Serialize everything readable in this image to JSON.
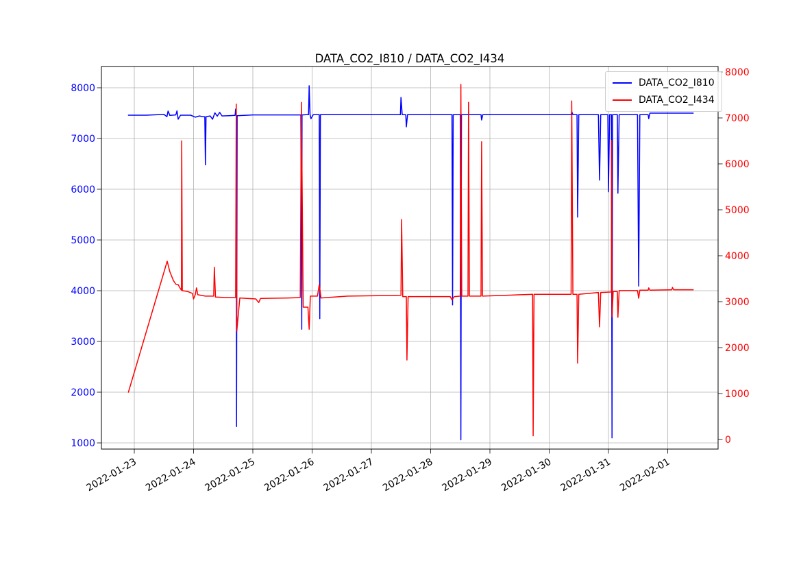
{
  "title": "DATA_CO2_I810 / DATA_CO2_I434",
  "legend": {
    "items": [
      {
        "label": "DATA_CO2_I810",
        "color": "#0000ff"
      },
      {
        "label": "DATA_CO2_I434",
        "color": "#ff0000"
      }
    ]
  },
  "chart_data": {
    "type": "line",
    "title": "DATA_CO2_I810 / DATA_CO2_I434",
    "xlabel": "",
    "ylabel_left": "",
    "ylabel_right": "",
    "grid": true,
    "grid_color": "#b0b0b0",
    "legend_position": "upper right",
    "x_axis": {
      "tick_labels": [
        "2022-01-23",
        "2022-01-24",
        "2022-01-25",
        "2022-01-26",
        "2022-01-27",
        "2022-01-28",
        "2022-01-29",
        "2022-01-30",
        "2022-01-31",
        "2022-02-01"
      ],
      "tick_days": [
        0,
        1,
        2,
        3,
        4,
        5,
        6,
        7,
        8,
        9
      ],
      "xlim_days": [
        -0.555,
        9.85
      ],
      "label_rotation_deg": 30
    },
    "y_axis_left": {
      "color": "#0000ff",
      "ticks": [
        1000,
        2000,
        3000,
        4000,
        5000,
        6000,
        7000,
        8000
      ],
      "ylim": [
        878,
        8419
      ]
    },
    "y_axis_right": {
      "color": "#ff0000",
      "ticks": [
        0,
        1000,
        2000,
        3000,
        4000,
        5000,
        6000,
        7000,
        8000
      ],
      "ylim": [
        -209,
        8119
      ]
    },
    "series": [
      {
        "name": "DATA_CO2_I810",
        "color": "#0000ff",
        "axis": "left",
        "points": [
          [
            -0.1,
            7460
          ],
          [
            0.2,
            7460
          ],
          [
            0.5,
            7475
          ],
          [
            0.55,
            7430
          ],
          [
            0.57,
            7540
          ],
          [
            0.6,
            7455
          ],
          [
            0.7,
            7465
          ],
          [
            0.72,
            7545
          ],
          [
            0.74,
            7380
          ],
          [
            0.78,
            7460
          ],
          [
            0.95,
            7460
          ],
          [
            1.03,
            7420
          ],
          [
            1.1,
            7445
          ],
          [
            1.15,
            7430
          ],
          [
            1.19,
            7430
          ],
          [
            1.2,
            6480
          ],
          [
            1.21,
            7430
          ],
          [
            1.28,
            7445
          ],
          [
            1.32,
            7380
          ],
          [
            1.36,
            7505
          ],
          [
            1.4,
            7440
          ],
          [
            1.44,
            7515
          ],
          [
            1.48,
            7445
          ],
          [
            1.6,
            7450
          ],
          [
            1.7,
            7455
          ],
          [
            1.71,
            7580
          ],
          [
            1.72,
            7460
          ],
          [
            1.725,
            1320
          ],
          [
            1.735,
            7450
          ],
          [
            2.0,
            7465
          ],
          [
            2.5,
            7465
          ],
          [
            2.81,
            7465
          ],
          [
            2.825,
            3240
          ],
          [
            2.83,
            7465
          ],
          [
            2.9,
            7470
          ],
          [
            2.94,
            7470
          ],
          [
            2.95,
            8040
          ],
          [
            2.965,
            7470
          ],
          [
            2.98,
            7390
          ],
          [
            3.02,
            7470
          ],
          [
            3.12,
            7470
          ],
          [
            3.13,
            3450
          ],
          [
            3.14,
            7470
          ],
          [
            3.6,
            7470
          ],
          [
            4.2,
            7470
          ],
          [
            4.49,
            7470
          ],
          [
            4.5,
            7810
          ],
          [
            4.52,
            7470
          ],
          [
            4.58,
            7470
          ],
          [
            4.59,
            7230
          ],
          [
            4.61,
            7470
          ],
          [
            5.1,
            7470
          ],
          [
            5.36,
            7470
          ],
          [
            5.37,
            3720
          ],
          [
            5.38,
            7470
          ],
          [
            5.5,
            7470
          ],
          [
            5.51,
            1060
          ],
          [
            5.52,
            7470
          ],
          [
            5.85,
            7470
          ],
          [
            5.86,
            7365
          ],
          [
            5.88,
            7470
          ],
          [
            6.5,
            7470
          ],
          [
            7.2,
            7470
          ],
          [
            7.37,
            7470
          ],
          [
            7.38,
            7530
          ],
          [
            7.4,
            7470
          ],
          [
            7.47,
            7470
          ],
          [
            7.48,
            5450
          ],
          [
            7.5,
            7470
          ],
          [
            7.83,
            7470
          ],
          [
            7.85,
            6180
          ],
          [
            7.87,
            7470
          ],
          [
            7.99,
            7470
          ],
          [
            8.0,
            5950
          ],
          [
            8.02,
            7470
          ],
          [
            8.05,
            7470
          ],
          [
            8.06,
            1100
          ],
          [
            8.07,
            7470
          ],
          [
            8.15,
            7470
          ],
          [
            8.16,
            5920
          ],
          [
            8.18,
            7470
          ],
          [
            8.49,
            7470
          ],
          [
            8.51,
            4090
          ],
          [
            8.53,
            7470
          ],
          [
            8.67,
            7470
          ],
          [
            8.68,
            7390
          ],
          [
            8.7,
            7500
          ],
          [
            9.1,
            7500
          ],
          [
            9.43,
            7500
          ]
        ]
      },
      {
        "name": "DATA_CO2_I434",
        "color": "#ff0000",
        "axis": "right",
        "points": [
          [
            -0.1,
            1030
          ],
          [
            0.555,
            3880
          ],
          [
            0.6,
            3650
          ],
          [
            0.66,
            3460
          ],
          [
            0.7,
            3380
          ],
          [
            0.74,
            3370
          ],
          [
            0.77,
            3300
          ],
          [
            0.795,
            3250
          ],
          [
            0.8,
            6500
          ],
          [
            0.81,
            3240
          ],
          [
            0.9,
            3220
          ],
          [
            0.98,
            3180
          ],
          [
            1.0,
            3060
          ],
          [
            1.03,
            3160
          ],
          [
            1.05,
            3300
          ],
          [
            1.07,
            3150
          ],
          [
            1.2,
            3120
          ],
          [
            1.34,
            3120
          ],
          [
            1.35,
            3750
          ],
          [
            1.37,
            3100
          ],
          [
            1.55,
            3090
          ],
          [
            1.71,
            3090
          ],
          [
            1.72,
            7300
          ],
          [
            1.73,
            2360
          ],
          [
            1.78,
            3080
          ],
          [
            2.05,
            3060
          ],
          [
            2.1,
            2980
          ],
          [
            2.13,
            3070
          ],
          [
            2.6,
            3080
          ],
          [
            2.8,
            3090
          ],
          [
            2.82,
            7340
          ],
          [
            2.85,
            2880
          ],
          [
            2.93,
            2880
          ],
          [
            2.95,
            2400
          ],
          [
            2.97,
            3120
          ],
          [
            3.09,
            3120
          ],
          [
            3.12,
            3370
          ],
          [
            3.15,
            3080
          ],
          [
            3.6,
            3120
          ],
          [
            4.1,
            3130
          ],
          [
            4.5,
            3140
          ],
          [
            4.51,
            4790
          ],
          [
            4.53,
            3110
          ],
          [
            4.59,
            3110
          ],
          [
            4.6,
            1730
          ],
          [
            4.62,
            3110
          ],
          [
            5.1,
            3110
          ],
          [
            5.33,
            3110
          ],
          [
            5.36,
            3040
          ],
          [
            5.4,
            3110
          ],
          [
            5.5,
            3120
          ],
          [
            5.51,
            7730
          ],
          [
            5.525,
            3120
          ],
          [
            5.63,
            3120
          ],
          [
            5.64,
            7340
          ],
          [
            5.655,
            3120
          ],
          [
            5.85,
            3120
          ],
          [
            5.86,
            6480
          ],
          [
            5.875,
            3120
          ],
          [
            6.3,
            3140
          ],
          [
            6.72,
            3160
          ],
          [
            6.73,
            80
          ],
          [
            6.745,
            3160
          ],
          [
            7.25,
            3160
          ],
          [
            7.37,
            3160
          ],
          [
            7.38,
            7370
          ],
          [
            7.4,
            3160
          ],
          [
            7.47,
            3160
          ],
          [
            7.48,
            1660
          ],
          [
            7.5,
            3160
          ],
          [
            7.83,
            3200
          ],
          [
            7.85,
            2450
          ],
          [
            7.87,
            3200
          ],
          [
            8.05,
            3210
          ],
          [
            8.055,
            6510
          ],
          [
            8.06,
            2670
          ],
          [
            8.08,
            3220
          ],
          [
            8.15,
            3220
          ],
          [
            8.16,
            2660
          ],
          [
            8.18,
            3240
          ],
          [
            8.49,
            3240
          ],
          [
            8.51,
            3075
          ],
          [
            8.53,
            3250
          ],
          [
            8.67,
            3250
          ],
          [
            8.68,
            3300
          ],
          [
            8.7,
            3250
          ],
          [
            9.07,
            3260
          ],
          [
            9.08,
            3310
          ],
          [
            9.1,
            3260
          ],
          [
            9.43,
            3260
          ]
        ]
      }
    ]
  }
}
